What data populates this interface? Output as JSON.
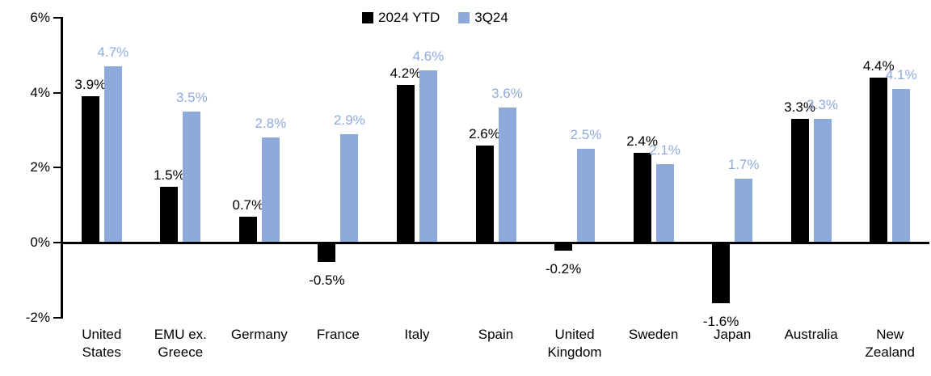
{
  "chart_data": {
    "type": "bar",
    "title": "",
    "xlabel": "",
    "ylabel": "",
    "ylim": [
      -2,
      6
    ],
    "grid": false,
    "legend_position": "top-center",
    "categories": [
      "United States",
      "EMU ex. Greece",
      "Germany",
      "France",
      "Italy",
      "Spain",
      "United Kingdom",
      "Sweden",
      "Japan",
      "Australia",
      "New Zealand"
    ],
    "category_lines": [
      [
        "United",
        "States"
      ],
      [
        "EMU ex.",
        "Greece"
      ],
      [
        "Germany"
      ],
      [
        "France"
      ],
      [
        "Italy"
      ],
      [
        "Spain"
      ],
      [
        "United",
        "Kingdom"
      ],
      [
        "Sweden"
      ],
      [
        "Japan"
      ],
      [
        "Australia"
      ],
      [
        "New",
        "Zealand"
      ]
    ],
    "series": [
      {
        "name": "2024 YTD",
        "color": "#000000",
        "values": [
          3.9,
          1.5,
          0.7,
          -0.5,
          4.2,
          2.6,
          -0.2,
          2.4,
          -1.6,
          3.3,
          4.4
        ],
        "labels": [
          "3.9%",
          "1.5%",
          "0.7%",
          "-0.5%",
          "4.2%",
          "2.6%",
          "-0.2%",
          "2.4%",
          "-1.6%",
          "3.3%",
          "4.4%"
        ]
      },
      {
        "name": "3Q24",
        "color": "#8EAADB",
        "values": [
          4.7,
          3.5,
          2.8,
          2.9,
          4.6,
          3.6,
          2.5,
          2.1,
          1.7,
          3.3,
          4.1
        ],
        "labels": [
          "4.7%",
          "3.5%",
          "2.8%",
          "2.9%",
          "4.6%",
          "3.6%",
          "2.5%",
          "2.1%",
          "1.7%",
          "3.3%",
          "4.1%"
        ]
      }
    ],
    "yticks": [
      {
        "label": "6%",
        "value": 6
      },
      {
        "label": "4%",
        "value": 4
      },
      {
        "label": "2%",
        "value": 2
      },
      {
        "label": "0%",
        "value": 0
      },
      {
        "label": "-2%",
        "value": -2
      }
    ]
  }
}
